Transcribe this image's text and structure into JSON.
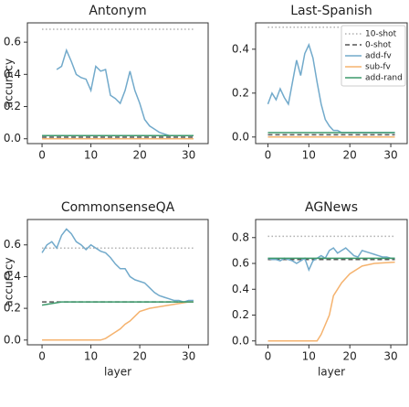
{
  "chart_data": [
    {
      "type": "line",
      "title": "Antonym",
      "ylabel": "accuracy",
      "xlim": [
        -3,
        34
      ],
      "xticks": [
        0,
        10,
        20,
        30
      ],
      "ylim": [
        -0.03,
        0.72
      ],
      "yticks": [
        {
          "value": 0,
          "label": "0.0"
        },
        0.2,
        0.4,
        0.6
      ],
      "series": [
        {
          "name": "10-shot",
          "color": "#b0b0b0",
          "dash": "dotted",
          "x": [
            0,
            31
          ],
          "values": [
            0.68,
            0.68
          ]
        },
        {
          "name": "0-shot",
          "color": "#555555",
          "dash": "dashed",
          "x": [
            0,
            31
          ],
          "values": [
            0.01,
            0.01
          ]
        },
        {
          "name": "add-fv",
          "color": "#72aacb",
          "dash": "solid",
          "x": [
            3,
            4,
            5,
            6,
            7,
            8,
            9,
            10,
            11,
            12,
            13,
            14,
            15,
            16,
            17,
            18,
            19,
            20,
            21,
            22,
            23,
            24,
            25,
            26,
            27,
            28,
            29,
            30,
            31
          ],
          "values": [
            0.43,
            0.45,
            0.55,
            0.48,
            0.4,
            0.38,
            0.37,
            0.3,
            0.45,
            0.42,
            0.43,
            0.27,
            0.25,
            0.22,
            0.3,
            0.42,
            0.3,
            0.22,
            0.12,
            0.08,
            0.06,
            0.04,
            0.03,
            0.02,
            0.02,
            0.02,
            0.02,
            0.02,
            0.02
          ]
        },
        {
          "name": "sub-fv",
          "color": "#f5b36f",
          "dash": "solid",
          "x": [
            0,
            31
          ],
          "values": [
            0.0,
            0.0
          ]
        },
        {
          "name": "add-rand",
          "color": "#3d9a6c",
          "dash": "solid",
          "x": [
            0,
            31
          ],
          "values": [
            0.02,
            0.02
          ]
        }
      ]
    },
    {
      "type": "line",
      "title": "Last-Spanish",
      "legend": "upper right",
      "xlim": [
        -3,
        34
      ],
      "xticks": [
        0,
        10,
        20,
        30
      ],
      "ylim": [
        -0.03,
        0.52
      ],
      "yticks": [
        {
          "value": 0,
          "label": "0.0"
        },
        0.2,
        0.4
      ],
      "series": [
        {
          "name": "10-shot",
          "color": "#b0b0b0",
          "dash": "dotted",
          "x": [
            0,
            31
          ],
          "values": [
            0.5,
            0.5
          ]
        },
        {
          "name": "0-shot",
          "color": "#555555",
          "dash": "dashed",
          "x": [
            0,
            31
          ],
          "values": [
            0.01,
            0.01
          ]
        },
        {
          "name": "add-fv",
          "color": "#72aacb",
          "dash": "solid",
          "x": [
            0,
            1,
            2,
            3,
            4,
            5,
            6,
            7,
            8,
            9,
            10,
            11,
            12,
            13,
            14,
            15,
            16,
            17,
            18,
            19,
            20,
            21,
            22,
            23,
            24,
            25,
            26,
            27,
            28,
            29,
            30,
            31
          ],
          "values": [
            0.15,
            0.2,
            0.17,
            0.22,
            0.18,
            0.15,
            0.25,
            0.35,
            0.28,
            0.38,
            0.42,
            0.36,
            0.25,
            0.15,
            0.08,
            0.05,
            0.03,
            0.03,
            0.02,
            0.02,
            0.02,
            0.02,
            0.02,
            0.02,
            0.02,
            0.02,
            0.02,
            0.02,
            0.02,
            0.02,
            0.02,
            0.02
          ]
        },
        {
          "name": "sub-fv",
          "color": "#f5b36f",
          "dash": "solid",
          "x": [
            0,
            31
          ],
          "values": [
            0.0,
            0.0
          ]
        },
        {
          "name": "add-rand",
          "color": "#3d9a6c",
          "dash": "solid",
          "x": [
            0,
            31
          ],
          "values": [
            0.02,
            0.02
          ]
        }
      ]
    },
    {
      "type": "line",
      "title": "CommonsenseQA",
      "ylabel": "accuracy",
      "xlabel": "layer",
      "xlim": [
        -3,
        34
      ],
      "xticks": [
        0,
        10,
        20,
        30
      ],
      "ylim": [
        -0.03,
        0.76
      ],
      "yticks": [
        {
          "value": 0,
          "label": "0.0"
        },
        0.2,
        0.4,
        0.6
      ],
      "series": [
        {
          "name": "10-shot",
          "color": "#b0b0b0",
          "dash": "dotted",
          "x": [
            0,
            31
          ],
          "values": [
            0.58,
            0.58
          ]
        },
        {
          "name": "0-shot",
          "color": "#555555",
          "dash": "dashed",
          "x": [
            0,
            31
          ],
          "values": [
            0.24,
            0.24
          ]
        },
        {
          "name": "add-fv",
          "color": "#72aacb",
          "dash": "solid",
          "x": [
            0,
            1,
            2,
            3,
            4,
            5,
            6,
            7,
            8,
            9,
            10,
            11,
            12,
            13,
            14,
            15,
            16,
            17,
            18,
            19,
            20,
            21,
            22,
            23,
            24,
            25,
            26,
            27,
            28,
            29,
            30,
            31
          ],
          "values": [
            0.55,
            0.6,
            0.62,
            0.58,
            0.66,
            0.7,
            0.67,
            0.62,
            0.6,
            0.57,
            0.6,
            0.58,
            0.56,
            0.55,
            0.52,
            0.48,
            0.45,
            0.45,
            0.4,
            0.38,
            0.37,
            0.36,
            0.33,
            0.3,
            0.28,
            0.27,
            0.26,
            0.25,
            0.25,
            0.24,
            0.25,
            0.25
          ]
        },
        {
          "name": "sub-fv",
          "color": "#f5b36f",
          "dash": "solid",
          "x": [
            0,
            12,
            13,
            15,
            16,
            17,
            18,
            19,
            20,
            22,
            24,
            26,
            28,
            30,
            31
          ],
          "values": [
            0.0,
            0.0,
            0.01,
            0.05,
            0.07,
            0.1,
            0.12,
            0.15,
            0.18,
            0.2,
            0.21,
            0.22,
            0.23,
            0.24,
            0.24
          ]
        },
        {
          "name": "add-rand",
          "color": "#3d9a6c",
          "dash": "solid",
          "x": [
            0,
            2,
            4,
            31
          ],
          "values": [
            0.22,
            0.23,
            0.24,
            0.24
          ]
        }
      ]
    },
    {
      "type": "line",
      "title": "AGNews",
      "xlabel": "layer",
      "xlim": [
        -3,
        34
      ],
      "xticks": [
        0,
        10,
        20,
        30
      ],
      "ylim": [
        -0.03,
        0.94
      ],
      "yticks": [
        {
          "value": 0,
          "label": "0.0"
        },
        0.2,
        0.4,
        0.6,
        0.8
      ],
      "series": [
        {
          "name": "10-shot",
          "color": "#b0b0b0",
          "dash": "dotted",
          "x": [
            0,
            31
          ],
          "values": [
            0.81,
            0.81
          ]
        },
        {
          "name": "0-shot",
          "color": "#555555",
          "dash": "dashed",
          "x": [
            0,
            31
          ],
          "values": [
            0.63,
            0.63
          ]
        },
        {
          "name": "add-fv",
          "color": "#72aacb",
          "dash": "solid",
          "x": [
            0,
            1,
            2,
            3,
            4,
            5,
            6,
            7,
            8,
            9,
            10,
            11,
            12,
            13,
            14,
            15,
            16,
            17,
            18,
            19,
            20,
            21,
            22,
            23,
            24,
            25,
            26,
            27,
            28,
            29,
            30,
            31
          ],
          "values": [
            0.64,
            0.63,
            0.63,
            0.62,
            0.64,
            0.63,
            0.62,
            0.6,
            0.62,
            0.64,
            0.55,
            0.62,
            0.64,
            0.66,
            0.64,
            0.7,
            0.72,
            0.68,
            0.7,
            0.72,
            0.69,
            0.66,
            0.65,
            0.7,
            0.69,
            0.68,
            0.67,
            0.66,
            0.65,
            0.65,
            0.64,
            0.64
          ]
        },
        {
          "name": "sub-fv",
          "color": "#f5b36f",
          "dash": "solid",
          "x": [
            0,
            12,
            13,
            15,
            16,
            18,
            20,
            23,
            26,
            31
          ],
          "values": [
            0.0,
            0.0,
            0.05,
            0.2,
            0.35,
            0.45,
            0.52,
            0.58,
            0.6,
            0.61
          ]
        },
        {
          "name": "add-rand",
          "color": "#3d9a6c",
          "dash": "solid",
          "x": [
            0,
            31
          ],
          "values": [
            0.64,
            0.64
          ]
        }
      ]
    }
  ]
}
